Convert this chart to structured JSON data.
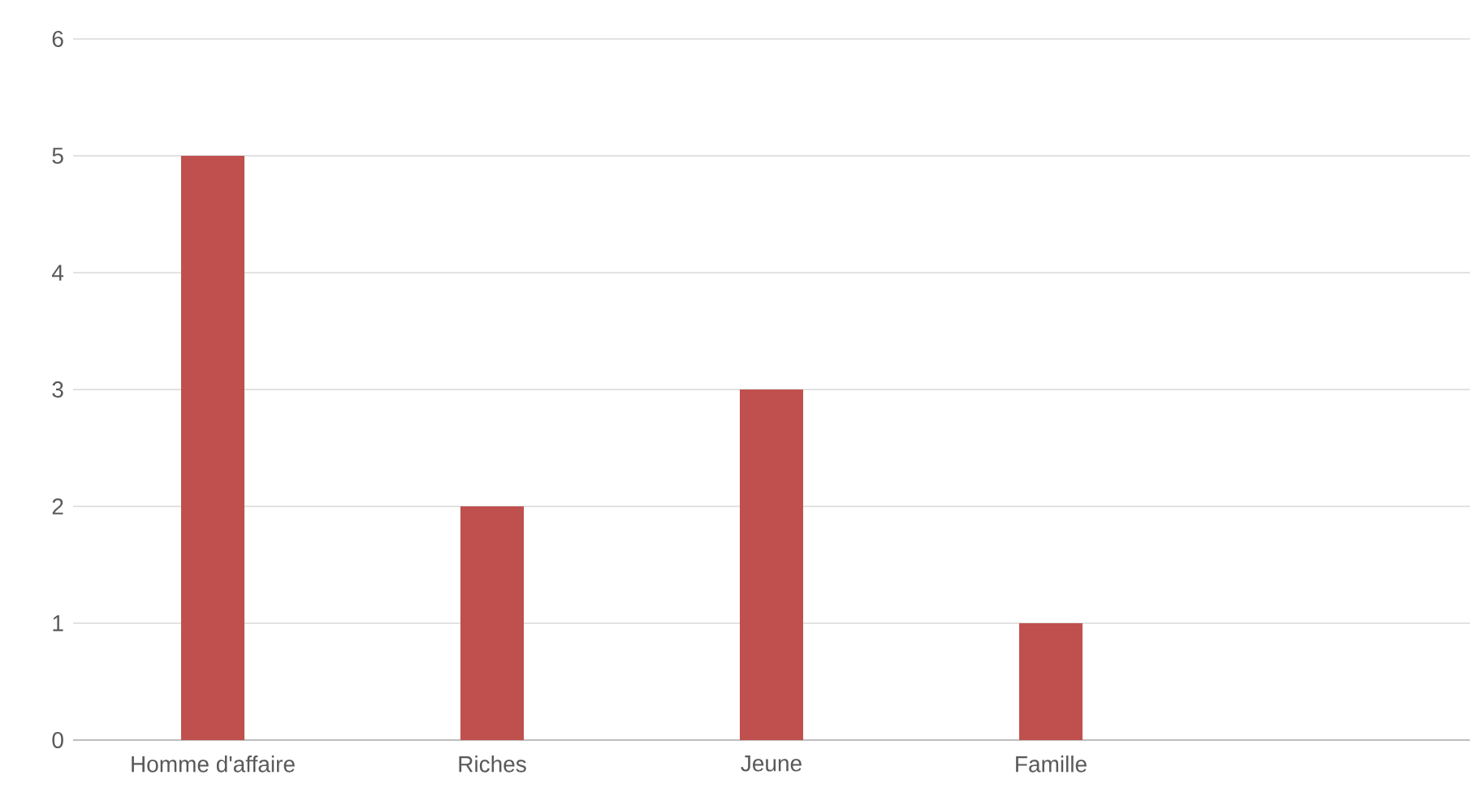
{
  "chart_data": {
    "type": "bar",
    "categories": [
      "Homme d'affaire",
      "Riches",
      "Jeune",
      "Famille",
      null
    ],
    "values": [
      5,
      2,
      3,
      1,
      null
    ],
    "color": "#c0504d",
    "ylim": [
      0,
      6
    ],
    "yticks": [
      0,
      1,
      2,
      3,
      4,
      5,
      6
    ],
    "grid": "y"
  }
}
